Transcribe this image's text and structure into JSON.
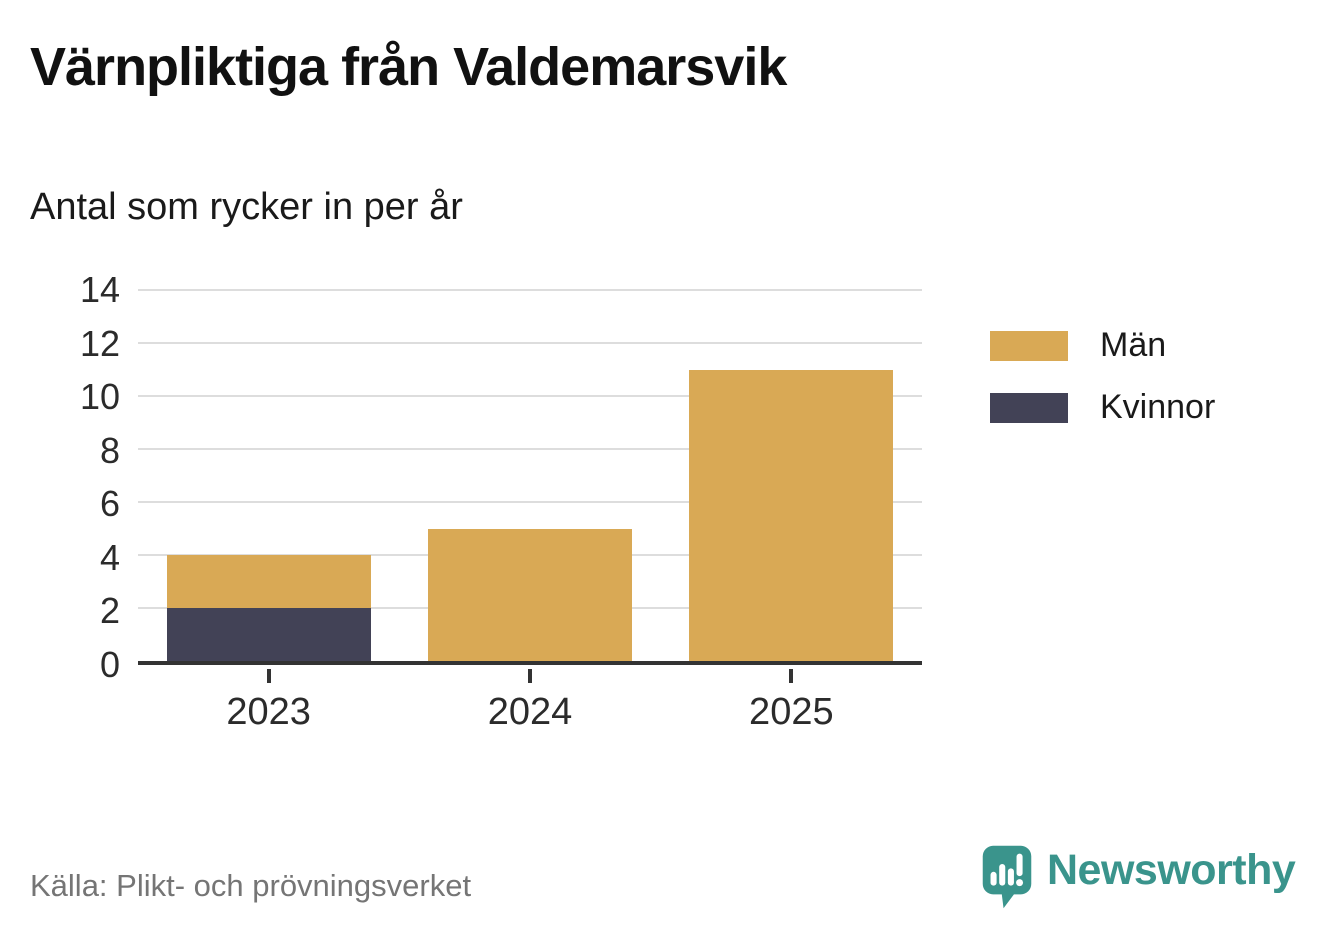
{
  "title": "Värnpliktiga från Valdemarsvik",
  "subtitle": "Antal som rycker in per år",
  "source": "Källa: Plikt- och prövningsverket",
  "brand": {
    "name": "Newsworthy",
    "color": "#3A948C",
    "icon": "bar-chart-speech-bubble-icon"
  },
  "colors": {
    "men_bar": "#D9A955",
    "women_bar": "#424256",
    "axis_line": "#333333",
    "gridline": "#DDDDDD",
    "tick_label": "#2B2B2B",
    "source_text": "#757575",
    "brand_teal": "#3A948C"
  },
  "chart_data": {
    "type": "bar",
    "stacked": true,
    "title": "Värnpliktiga från Valdemarsvik",
    "subtitle": "Antal som rycker in per år",
    "categories": [
      "2023",
      "2024",
      "2025"
    ],
    "series": [
      {
        "name": "Kvinnor",
        "color": "#424256",
        "values": [
          2,
          0,
          0
        ]
      },
      {
        "name": "Män",
        "color": "#D9A955",
        "values": [
          2,
          5,
          11
        ]
      }
    ],
    "totals": [
      4,
      5,
      11
    ],
    "xlabel": "",
    "ylabel": "",
    "ylim": [
      0,
      14
    ],
    "yticks": [
      0,
      2,
      4,
      6,
      8,
      10,
      12,
      14
    ],
    "grid": "horizontal",
    "legend_position": "right-top",
    "legend_order": [
      "Män",
      "Kvinnor"
    ],
    "bar_width_fraction": 0.26
  }
}
